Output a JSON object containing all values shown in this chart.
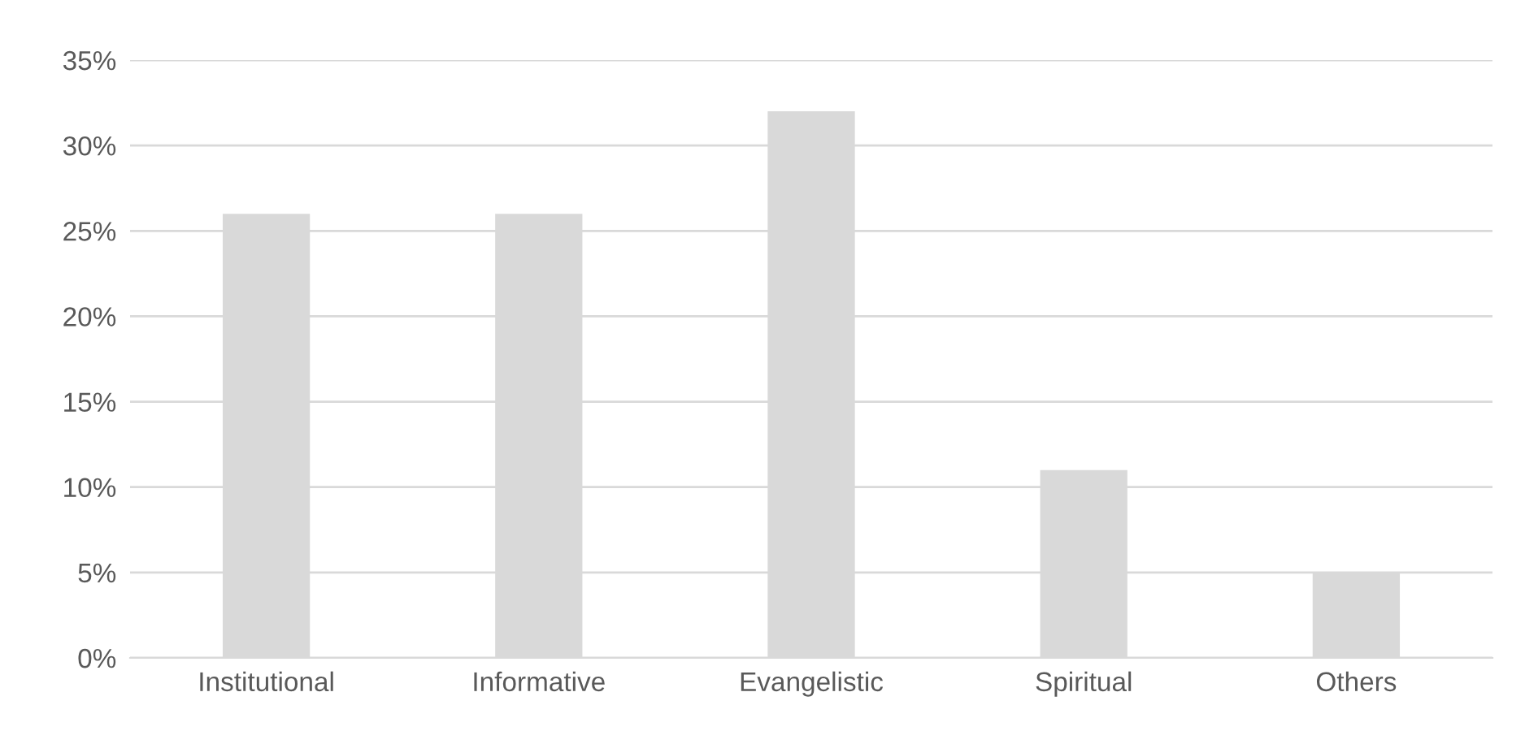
{
  "chart_data": {
    "type": "bar",
    "categories": [
      "Institutional",
      "Informative",
      "Evangelistic",
      "Spiritual",
      "Others"
    ],
    "values": [
      26,
      26,
      32,
      11,
      5
    ],
    "color": "#d9d9d9",
    "ylim": [
      0,
      35
    ],
    "yticks": [
      {
        "value": 0,
        "label": "0%"
      },
      {
        "value": 5,
        "label": "5%"
      },
      {
        "value": 10,
        "label": "10%"
      },
      {
        "value": 15,
        "label": "15%"
      },
      {
        "value": 20,
        "label": "20%"
      },
      {
        "value": 25,
        "label": "25%"
      },
      {
        "value": 30,
        "label": "30%"
      },
      {
        "value": 35,
        "label": "35%"
      }
    ],
    "grid": "y"
  }
}
